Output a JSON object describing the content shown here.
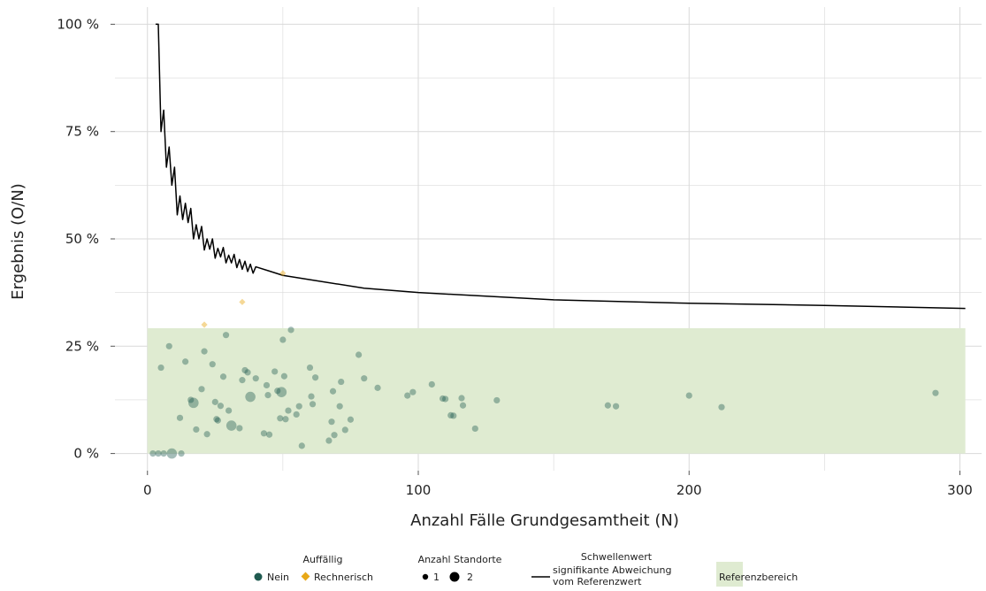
{
  "chart_data": {
    "type": "scatter",
    "xlabel": "Anzahl Fälle Grundgesamtheit (N)",
    "ylabel": "Ergebnis (O/N)",
    "xlim": [
      -12,
      308
    ],
    "ylim": [
      -4,
      104
    ],
    "x_ticks": [
      0,
      100,
      200,
      300
    ],
    "x_tick_labels": [
      "0",
      "100",
      "200",
      "300"
    ],
    "y_ticks": [
      0,
      25,
      50,
      75,
      100
    ],
    "y_tick_labels": [
      "0 %",
      "25 %",
      "50 %",
      "75 %",
      "100 %"
    ],
    "grid": true,
    "reference_range": {
      "x": [
        0,
        302
      ],
      "y": [
        0,
        29.2
      ]
    },
    "series": [
      {
        "name": "Nein",
        "color": "#1f5a50",
        "marker": "circle",
        "points": [
          {
            "x": 2,
            "y": 0,
            "n": 1
          },
          {
            "x": 4,
            "y": 0,
            "n": 1
          },
          {
            "x": 5,
            "y": 20,
            "n": 1
          },
          {
            "x": 6,
            "y": 0,
            "n": 1
          },
          {
            "x": 8,
            "y": 25,
            "n": 1
          },
          {
            "x": 9,
            "y": 0,
            "n": 2
          },
          {
            "x": 12,
            "y": 8.3,
            "n": 1
          },
          {
            "x": 12.5,
            "y": 0,
            "n": 1
          },
          {
            "x": 14,
            "y": 21.4,
            "n": 1
          },
          {
            "x": 16,
            "y": 12.5,
            "n": 1
          },
          {
            "x": 17,
            "y": 11.8,
            "n": 2
          },
          {
            "x": 18,
            "y": 5.6,
            "n": 1
          },
          {
            "x": 20,
            "y": 15,
            "n": 1
          },
          {
            "x": 21,
            "y": 23.8,
            "n": 1
          },
          {
            "x": 22,
            "y": 4.5,
            "n": 1
          },
          {
            "x": 24,
            "y": 20.8,
            "n": 1
          },
          {
            "x": 25,
            "y": 12,
            "n": 1
          },
          {
            "x": 25.5,
            "y": 8,
            "n": 1
          },
          {
            "x": 26,
            "y": 7.7,
            "n": 1
          },
          {
            "x": 27,
            "y": 11.1,
            "n": 1
          },
          {
            "x": 28,
            "y": 17.9,
            "n": 1
          },
          {
            "x": 29,
            "y": 27.6,
            "n": 1
          },
          {
            "x": 30,
            "y": 10,
            "n": 1
          },
          {
            "x": 31,
            "y": 6.5,
            "n": 2
          },
          {
            "x": 34,
            "y": 5.9,
            "n": 1
          },
          {
            "x": 35,
            "y": 17.1,
            "n": 1
          },
          {
            "x": 36,
            "y": 19.4,
            "n": 1
          },
          {
            "x": 37,
            "y": 18.9,
            "n": 1
          },
          {
            "x": 38,
            "y": 13.2,
            "n": 2
          },
          {
            "x": 40,
            "y": 17.5,
            "n": 1
          },
          {
            "x": 43,
            "y": 4.7,
            "n": 1
          },
          {
            "x": 44,
            "y": 15.9,
            "n": 1
          },
          {
            "x": 44.5,
            "y": 13.6,
            "n": 1
          },
          {
            "x": 45,
            "y": 4.4,
            "n": 1
          },
          {
            "x": 47,
            "y": 19.1,
            "n": 1
          },
          {
            "x": 48,
            "y": 14.6,
            "n": 1
          },
          {
            "x": 49,
            "y": 8.2,
            "n": 1
          },
          {
            "x": 49.5,
            "y": 14.3,
            "n": 2
          },
          {
            "x": 50,
            "y": 26.5,
            "n": 1
          },
          {
            "x": 50.5,
            "y": 18,
            "n": 1
          },
          {
            "x": 51,
            "y": 8,
            "n": 1
          },
          {
            "x": 52,
            "y": 10,
            "n": 1
          },
          {
            "x": 53,
            "y": 28.8,
            "n": 1
          },
          {
            "x": 55,
            "y": 9.1,
            "n": 1
          },
          {
            "x": 56,
            "y": 11,
            "n": 1
          },
          {
            "x": 57,
            "y": 1.8,
            "n": 1
          },
          {
            "x": 60,
            "y": 20,
            "n": 1
          },
          {
            "x": 60.5,
            "y": 13.3,
            "n": 1
          },
          {
            "x": 61,
            "y": 11.5,
            "n": 1
          },
          {
            "x": 62,
            "y": 17.7,
            "n": 1
          },
          {
            "x": 67,
            "y": 3,
            "n": 1
          },
          {
            "x": 68,
            "y": 7.4,
            "n": 1
          },
          {
            "x": 68.5,
            "y": 14.5,
            "n": 1
          },
          {
            "x": 69,
            "y": 4.3,
            "n": 1
          },
          {
            "x": 71,
            "y": 11,
            "n": 1
          },
          {
            "x": 71.5,
            "y": 16.7,
            "n": 1
          },
          {
            "x": 73,
            "y": 5.5,
            "n": 1
          },
          {
            "x": 75,
            "y": 7.9,
            "n": 1
          },
          {
            "x": 78,
            "y": 23,
            "n": 1
          },
          {
            "x": 80,
            "y": 17.5,
            "n": 1
          },
          {
            "x": 85,
            "y": 15.3,
            "n": 1
          },
          {
            "x": 96,
            "y": 13.5,
            "n": 1
          },
          {
            "x": 98,
            "y": 14.3,
            "n": 1
          },
          {
            "x": 105,
            "y": 16.1,
            "n": 1
          },
          {
            "x": 109,
            "y": 12.8,
            "n": 1
          },
          {
            "x": 110,
            "y": 12.7,
            "n": 1
          },
          {
            "x": 112,
            "y": 8.9,
            "n": 1
          },
          {
            "x": 113,
            "y": 8.8,
            "n": 1
          },
          {
            "x": 116,
            "y": 12.9,
            "n": 1
          },
          {
            "x": 116.5,
            "y": 11.2,
            "n": 1
          },
          {
            "x": 121,
            "y": 5.8,
            "n": 1
          },
          {
            "x": 129,
            "y": 12.4,
            "n": 1
          },
          {
            "x": 170,
            "y": 11.2,
            "n": 1
          },
          {
            "x": 173,
            "y": 11,
            "n": 1
          },
          {
            "x": 200,
            "y": 13.5,
            "n": 1
          },
          {
            "x": 212,
            "y": 10.8,
            "n": 1
          },
          {
            "x": 291,
            "y": 14.1,
            "n": 1
          }
        ]
      },
      {
        "name": "Rechnerisch",
        "color": "#e8a817",
        "marker": "diamond",
        "points": [
          {
            "x": 21,
            "y": 30,
            "n": 1
          },
          {
            "x": 35,
            "y": 35.3,
            "n": 1
          },
          {
            "x": 50,
            "y": 42,
            "n": 1
          }
        ]
      }
    ],
    "threshold_line": {
      "name": "signifikante Abweichung vom Referenzwert",
      "color": "#000000",
      "x": [
        3,
        4,
        5,
        6,
        7,
        8,
        9,
        10,
        11,
        12,
        13,
        14,
        15,
        16,
        17,
        18,
        19,
        20,
        21,
        22,
        23,
        24,
        25,
        26,
        27,
        28,
        29,
        30,
        31,
        32,
        33,
        34,
        35,
        36,
        37,
        38,
        39,
        40,
        45,
        50,
        60,
        80,
        100,
        150,
        200,
        250,
        302
      ],
      "y": [
        100,
        100,
        75,
        80,
        66.7,
        71.4,
        62.5,
        66.7,
        55.6,
        60,
        54.5,
        58.3,
        53.8,
        57.1,
        50,
        53.3,
        50,
        52.9,
        47.4,
        50,
        47.6,
        50,
        45.5,
        47.8,
        45.8,
        48,
        44.4,
        46.2,
        44.4,
        46.4,
        43.3,
        45.2,
        42.9,
        44.8,
        42.4,
        44.1,
        42,
        43.5,
        42.5,
        41.5,
        40.5,
        38.5,
        37.5,
        35.8,
        35,
        34.5,
        33.8
      ]
    }
  },
  "legend": {
    "auffaellig_title": "Auffällig",
    "nein_label": "Nein",
    "rechnerisch_label": "Rechnerisch",
    "standorte_title": "Anzahl Standorte",
    "size_1_label": "1",
    "size_2_label": "2",
    "schwellenwert_title": "Schwellenwert",
    "schwellenwert_label_line1": "signifikante Abweichung",
    "schwellenwert_label_line2": "vom Referenzwert",
    "referenz_label": "Referenzbereich"
  },
  "colors": {
    "nein": "#1f5a50",
    "rechnerisch": "#e8a817",
    "reference_fill": "#dfebd1",
    "grid": "#d9d9d9"
  }
}
